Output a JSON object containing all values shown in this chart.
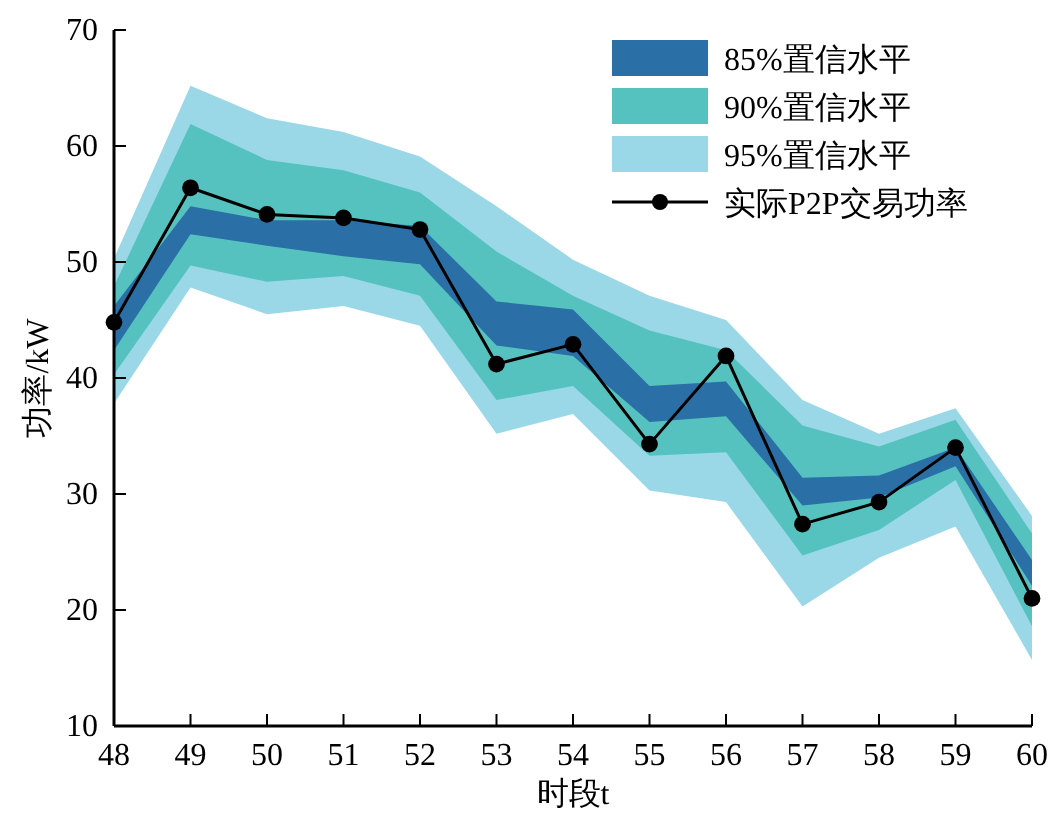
{
  "chart_data": {
    "type": "line",
    "xlabel": "时段t",
    "ylabel": "功率/kW",
    "x": [
      48,
      49,
      50,
      51,
      52,
      53,
      54,
      55,
      56,
      57,
      58,
      59,
      60
    ],
    "xlim": [
      48,
      60
    ],
    "xticks": [
      48,
      49,
      50,
      51,
      52,
      53,
      54,
      55,
      56,
      57,
      58,
      59,
      60
    ],
    "ylim": [
      10,
      70
    ],
    "yticks": [
      10,
      20,
      30,
      40,
      50,
      60,
      70
    ],
    "grid": false,
    "legend": "top right",
    "series": [
      {
        "name": "95%置信水平",
        "type": "area",
        "color": "#9ad8e8",
        "values": [
          null,
          null,
          null,
          null,
          null,
          null,
          null,
          null,
          null,
          null,
          null,
          null,
          null
        ],
        "lower": [
          37.8,
          47.8,
          45.5,
          46.2,
          44.5,
          35.2,
          36.9,
          30.3,
          29.3,
          20.3,
          24.5,
          27.2,
          15.7
        ],
        "upper": [
          50.3,
          65.2,
          62.4,
          61.2,
          59.1,
          54.8,
          50.2,
          47.1,
          45.0,
          38.1,
          35.2,
          37.4,
          28.1
        ]
      },
      {
        "name": "90%置信水平",
        "type": "area",
        "color": "#55c2c0",
        "values": [
          null,
          null,
          null,
          null,
          null,
          null,
          null,
          null,
          null,
          null,
          null,
          null,
          null
        ],
        "lower": [
          40.3,
          49.7,
          48.3,
          48.8,
          47.1,
          38.1,
          39.3,
          33.3,
          33.6,
          24.7,
          26.9,
          31.2,
          18.6
        ],
        "upper": [
          47.9,
          61.9,
          58.8,
          57.9,
          56.0,
          50.9,
          47.1,
          44.1,
          42.4,
          35.9,
          34.1,
          36.4,
          26.6
        ]
      },
      {
        "name": "85%置信水平",
        "type": "area",
        "color": "#2a6fa5",
        "values": [
          null,
          null,
          null,
          null,
          null,
          null,
          null,
          null,
          null,
          null,
          null,
          null,
          null
        ],
        "lower": [
          42.4,
          52.4,
          51.4,
          50.5,
          49.8,
          42.8,
          41.9,
          36.2,
          36.7,
          29.0,
          29.7,
          32.4,
          22.1
        ],
        "upper": [
          46.2,
          54.8,
          53.6,
          53.6,
          53.1,
          46.6,
          45.9,
          39.3,
          39.7,
          31.4,
          31.6,
          34.0,
          24.3
        ]
      },
      {
        "name": "实际P2P交易功率",
        "color": "#000000",
        "marker": "circle",
        "line_style": "solid",
        "values": [
          44.8,
          56.4,
          54.1,
          53.8,
          52.8,
          41.2,
          42.9,
          34.3,
          41.9,
          27.4,
          29.3,
          34.0,
          21.0
        ]
      }
    ]
  }
}
